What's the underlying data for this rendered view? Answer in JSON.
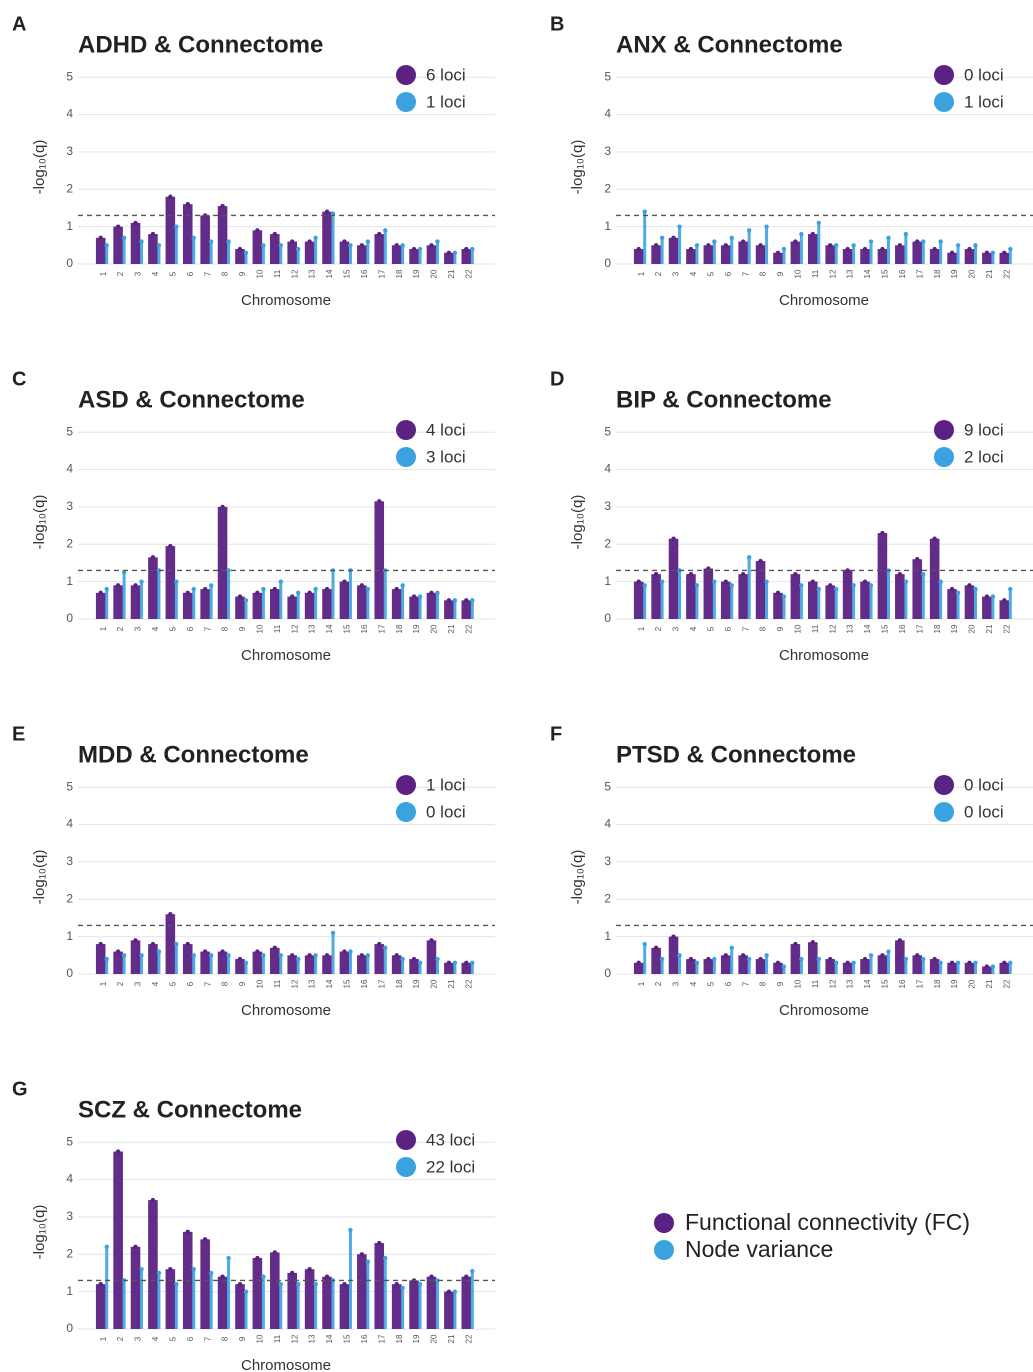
{
  "chart_data": [
    {
      "type": "manhattan",
      "panel": "A",
      "title": "ADHD & Connectome",
      "xlabel": "Chromosome",
      "ylabel": "-log₁₀(q)",
      "categories": [
        "1",
        "2",
        "3",
        "4",
        "5",
        "6",
        "7",
        "8",
        "9",
        "10",
        "11",
        "12",
        "13",
        "14",
        "15",
        "16",
        "17",
        "18",
        "19",
        "20",
        "21",
        "22"
      ],
      "series": [
        {
          "name": "6 loci",
          "color": "#5b2183",
          "values": [
            0.7,
            1.0,
            1.1,
            0.8,
            1.8,
            1.6,
            1.3,
            1.55,
            0.4,
            0.9,
            0.8,
            0.6,
            0.6,
            1.4,
            0.6,
            0.5,
            0.8,
            0.5,
            0.4,
            0.5,
            0.3,
            0.4
          ]
        },
        {
          "name": "1 loci",
          "color": "#3ba2e0",
          "values": [
            0.5,
            0.7,
            0.6,
            0.5,
            1.0,
            0.7,
            0.6,
            0.6,
            0.3,
            0.5,
            0.5,
            0.4,
            0.7,
            1.35,
            0.5,
            0.6,
            0.9,
            0.5,
            0.4,
            0.6,
            0.3,
            0.4
          ]
        }
      ],
      "ylim": [
        0,
        5.3
      ],
      "yticks": [
        0,
        1,
        2,
        3,
        4,
        5
      ],
      "threshold": 1.3,
      "grid": true
    },
    {
      "type": "manhattan",
      "panel": "B",
      "title": "ANX & Connectome",
      "xlabel": "Chromosome",
      "ylabel": "-log₁₀(q)",
      "categories": [
        "1",
        "2",
        "3",
        "4",
        "5",
        "6",
        "7",
        "8",
        "9",
        "10",
        "11",
        "12",
        "13",
        "14",
        "15",
        "16",
        "17",
        "18",
        "19",
        "20",
        "21",
        "22"
      ],
      "series": [
        {
          "name": "0 loci",
          "color": "#5b2183",
          "values": [
            0.4,
            0.5,
            0.7,
            0.4,
            0.5,
            0.5,
            0.6,
            0.5,
            0.3,
            0.6,
            0.8,
            0.5,
            0.4,
            0.4,
            0.4,
            0.5,
            0.6,
            0.4,
            0.3,
            0.4,
            0.3,
            0.3
          ]
        },
        {
          "name": "1 loci",
          "color": "#3ba2e0",
          "values": [
            1.4,
            0.7,
            1.0,
            0.5,
            0.6,
            0.7,
            0.9,
            1.0,
            0.4,
            0.8,
            1.1,
            0.5,
            0.5,
            0.6,
            0.7,
            0.8,
            0.6,
            0.6,
            0.5,
            0.5,
            0.3,
            0.4
          ]
        }
      ],
      "ylim": [
        0,
        5.3
      ],
      "yticks": [
        0,
        1,
        2,
        3,
        4,
        5
      ],
      "threshold": 1.3,
      "grid": true
    },
    {
      "type": "manhattan",
      "panel": "C",
      "title": "ASD & Connectome",
      "xlabel": "Chromosome",
      "ylabel": "-log₁₀(q)",
      "categories": [
        "1",
        "2",
        "3",
        "4",
        "5",
        "6",
        "7",
        "8",
        "9",
        "10",
        "11",
        "12",
        "13",
        "14",
        "15",
        "16",
        "17",
        "18",
        "19",
        "20",
        "21",
        "22"
      ],
      "series": [
        {
          "name": "4 loci",
          "color": "#5b2183",
          "values": [
            0.7,
            0.9,
            0.9,
            1.65,
            1.95,
            0.7,
            0.8,
            3.0,
            0.6,
            0.7,
            0.8,
            0.6,
            0.7,
            0.8,
            1.0,
            0.9,
            3.15,
            0.8,
            0.6,
            0.7,
            0.5,
            0.5
          ]
        },
        {
          "name": "3 loci",
          "color": "#3ba2e0",
          "values": [
            0.8,
            1.25,
            1.0,
            1.3,
            1.0,
            0.8,
            0.9,
            1.3,
            0.5,
            0.8,
            1.0,
            0.7,
            0.8,
            1.3,
            1.3,
            0.8,
            1.3,
            0.9,
            0.6,
            0.7,
            0.5,
            0.5
          ]
        }
      ],
      "ylim": [
        0,
        5.3
      ],
      "yticks": [
        0,
        1,
        2,
        3,
        4,
        5
      ],
      "threshold": 1.3,
      "grid": true
    },
    {
      "type": "manhattan",
      "panel": "D",
      "title": "BIP & Connectome",
      "xlabel": "Chromosome",
      "ylabel": "-log₁₀(q)",
      "categories": [
        "1",
        "2",
        "3",
        "4",
        "5",
        "6",
        "7",
        "8",
        "9",
        "10",
        "11",
        "12",
        "13",
        "14",
        "15",
        "16",
        "17",
        "18",
        "19",
        "20",
        "21",
        "22"
      ],
      "series": [
        {
          "name": "9 loci",
          "color": "#5b2183",
          "values": [
            1.0,
            1.2,
            2.15,
            1.2,
            1.35,
            1.0,
            1.2,
            1.55,
            0.7,
            1.2,
            1.0,
            0.9,
            1.3,
            1.0,
            2.3,
            1.2,
            1.6,
            2.15,
            0.8,
            0.9,
            0.6,
            0.5
          ]
        },
        {
          "name": "2 loci",
          "color": "#3ba2e0",
          "values": [
            0.9,
            1.0,
            1.3,
            0.9,
            1.0,
            0.9,
            1.65,
            1.0,
            0.6,
            0.9,
            0.8,
            0.8,
            0.9,
            0.9,
            1.3,
            1.0,
            1.2,
            1.0,
            0.7,
            0.8,
            0.6,
            0.8
          ]
        }
      ],
      "ylim": [
        0,
        5.3
      ],
      "yticks": [
        0,
        1,
        2,
        3,
        4,
        5
      ],
      "threshold": 1.3,
      "grid": true
    },
    {
      "type": "manhattan",
      "panel": "E",
      "title": "MDD & Connectome",
      "xlabel": "Chromosome",
      "ylabel": "-log₁₀(q)",
      "categories": [
        "1",
        "2",
        "3",
        "4",
        "5",
        "6",
        "7",
        "8",
        "9",
        "10",
        "11",
        "12",
        "13",
        "14",
        "15",
        "16",
        "17",
        "18",
        "19",
        "20",
        "21",
        "22"
      ],
      "series": [
        {
          "name": "1 loci",
          "color": "#5b2183",
          "values": [
            0.8,
            0.6,
            0.9,
            0.8,
            1.6,
            0.8,
            0.6,
            0.6,
            0.4,
            0.6,
            0.7,
            0.5,
            0.5,
            0.5,
            0.6,
            0.5,
            0.8,
            0.5,
            0.4,
            0.9,
            0.3,
            0.3
          ]
        },
        {
          "name": "0 loci",
          "color": "#3ba2e0",
          "values": [
            0.4,
            0.5,
            0.5,
            0.6,
            0.8,
            0.5,
            0.5,
            0.5,
            0.3,
            0.5,
            0.5,
            0.4,
            0.5,
            1.1,
            0.6,
            0.5,
            0.7,
            0.4,
            0.3,
            0.4,
            0.3,
            0.3
          ]
        }
      ],
      "ylim": [
        0,
        5.3
      ],
      "yticks": [
        0,
        1,
        2,
        3,
        4,
        5
      ],
      "threshold": 1.3,
      "grid": true
    },
    {
      "type": "manhattan",
      "panel": "F",
      "title": "PTSD & Connectome",
      "xlabel": "Chromosome",
      "ylabel": "-log₁₀(q)",
      "categories": [
        "1",
        "2",
        "3",
        "4",
        "5",
        "6",
        "7",
        "8",
        "9",
        "10",
        "11",
        "12",
        "13",
        "14",
        "15",
        "16",
        "17",
        "18",
        "19",
        "20",
        "21",
        "22"
      ],
      "series": [
        {
          "name": "0 loci",
          "color": "#5b2183",
          "values": [
            0.3,
            0.7,
            1.0,
            0.4,
            0.4,
            0.5,
            0.5,
            0.4,
            0.3,
            0.8,
            0.85,
            0.4,
            0.3,
            0.4,
            0.5,
            0.9,
            0.5,
            0.4,
            0.3,
            0.3,
            0.2,
            0.3
          ]
        },
        {
          "name": "0 loci",
          "color": "#3ba2e0",
          "values": [
            0.8,
            0.4,
            0.5,
            0.3,
            0.4,
            0.7,
            0.4,
            0.5,
            0.2,
            0.4,
            0.4,
            0.3,
            0.3,
            0.5,
            0.6,
            0.4,
            0.4,
            0.3,
            0.3,
            0.3,
            0.2,
            0.3
          ]
        }
      ],
      "ylim": [
        0,
        5.3
      ],
      "yticks": [
        0,
        1,
        2,
        3,
        4,
        5
      ],
      "threshold": 1.3,
      "grid": true
    },
    {
      "type": "manhattan",
      "panel": "G",
      "title": "SCZ & Connectome",
      "xlabel": "Chromosome",
      "ylabel": "-log₁₀(q)",
      "categories": [
        "1",
        "2",
        "3",
        "4",
        "5",
        "6",
        "7",
        "8",
        "9",
        "10",
        "11",
        "12",
        "13",
        "14",
        "15",
        "16",
        "17",
        "18",
        "19",
        "20",
        "21",
        "22"
      ],
      "series": [
        {
          "name": "43 loci",
          "color": "#5b2183",
          "values": [
            1.2,
            4.75,
            2.2,
            3.45,
            1.6,
            2.6,
            2.4,
            1.4,
            1.2,
            1.9,
            2.05,
            1.5,
            1.6,
            1.4,
            1.2,
            2.0,
            2.3,
            1.2,
            1.3,
            1.4,
            1.0,
            1.4
          ]
        },
        {
          "name": "22 loci",
          "color": "#3ba2e0",
          "values": [
            2.2,
            1.3,
            1.6,
            1.5,
            1.2,
            1.6,
            1.5,
            1.9,
            1.0,
            1.4,
            1.2,
            1.2,
            1.2,
            1.3,
            2.65,
            1.8,
            1.9,
            1.1,
            1.2,
            1.3,
            1.0,
            1.55
          ]
        }
      ],
      "ylim": [
        0,
        5.3
      ],
      "yticks": [
        0,
        1,
        2,
        3,
        4,
        5
      ],
      "threshold": 1.3,
      "grid": true
    }
  ],
  "legend": [
    {
      "label": "Functional connectivity (FC)",
      "color": "#5b2183"
    },
    {
      "label": "Node variance",
      "color": "#3ba2e0"
    }
  ]
}
